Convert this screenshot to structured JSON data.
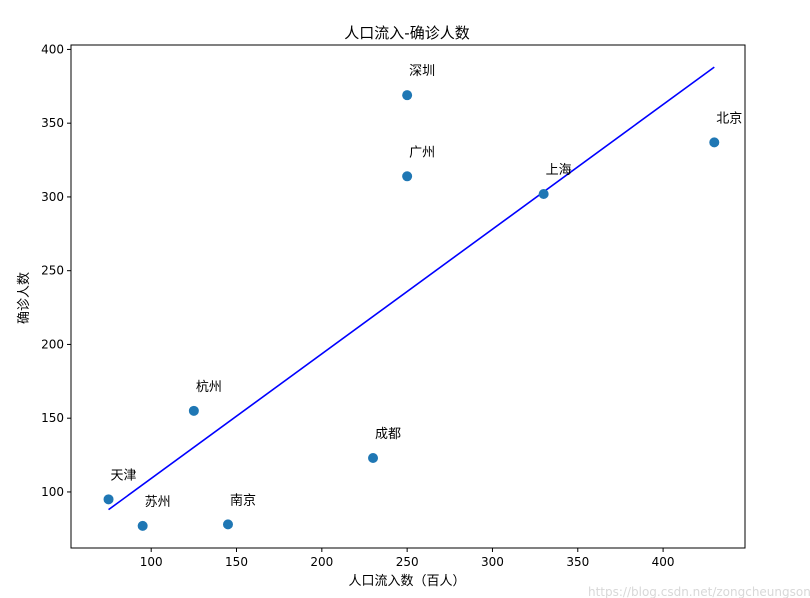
{
  "chart_data": {
    "type": "scatter",
    "title": "人口流入-确诊人数",
    "xlabel": "人口流入数（百人）",
    "ylabel": "确诊人数",
    "xlim": [
      53,
      448
    ],
    "ylim": [
      62,
      403
    ],
    "xticks": [
      100,
      150,
      200,
      250,
      300,
      350,
      400
    ],
    "yticks": [
      100,
      150,
      200,
      250,
      300,
      350,
      400
    ],
    "grid": false,
    "point_color": "#1f77b4",
    "line_color": "#0000ff",
    "points": [
      {
        "label": "北京",
        "x": 430,
        "y": 337
      },
      {
        "label": "上海",
        "x": 330,
        "y": 302
      },
      {
        "label": "深圳",
        "x": 250,
        "y": 369
      },
      {
        "label": "广州",
        "x": 250,
        "y": 314
      },
      {
        "label": "杭州",
        "x": 125,
        "y": 155
      },
      {
        "label": "成都",
        "x": 230,
        "y": 123
      },
      {
        "label": "天津",
        "x": 75,
        "y": 95
      },
      {
        "label": "苏州",
        "x": 95,
        "y": 77
      },
      {
        "label": "南京",
        "x": 145,
        "y": 78
      }
    ],
    "regression_line": {
      "x": [
        75,
        430
      ],
      "y": [
        88,
        388
      ]
    }
  },
  "watermark": "https://blog.csdn.net/zongcheungsong"
}
